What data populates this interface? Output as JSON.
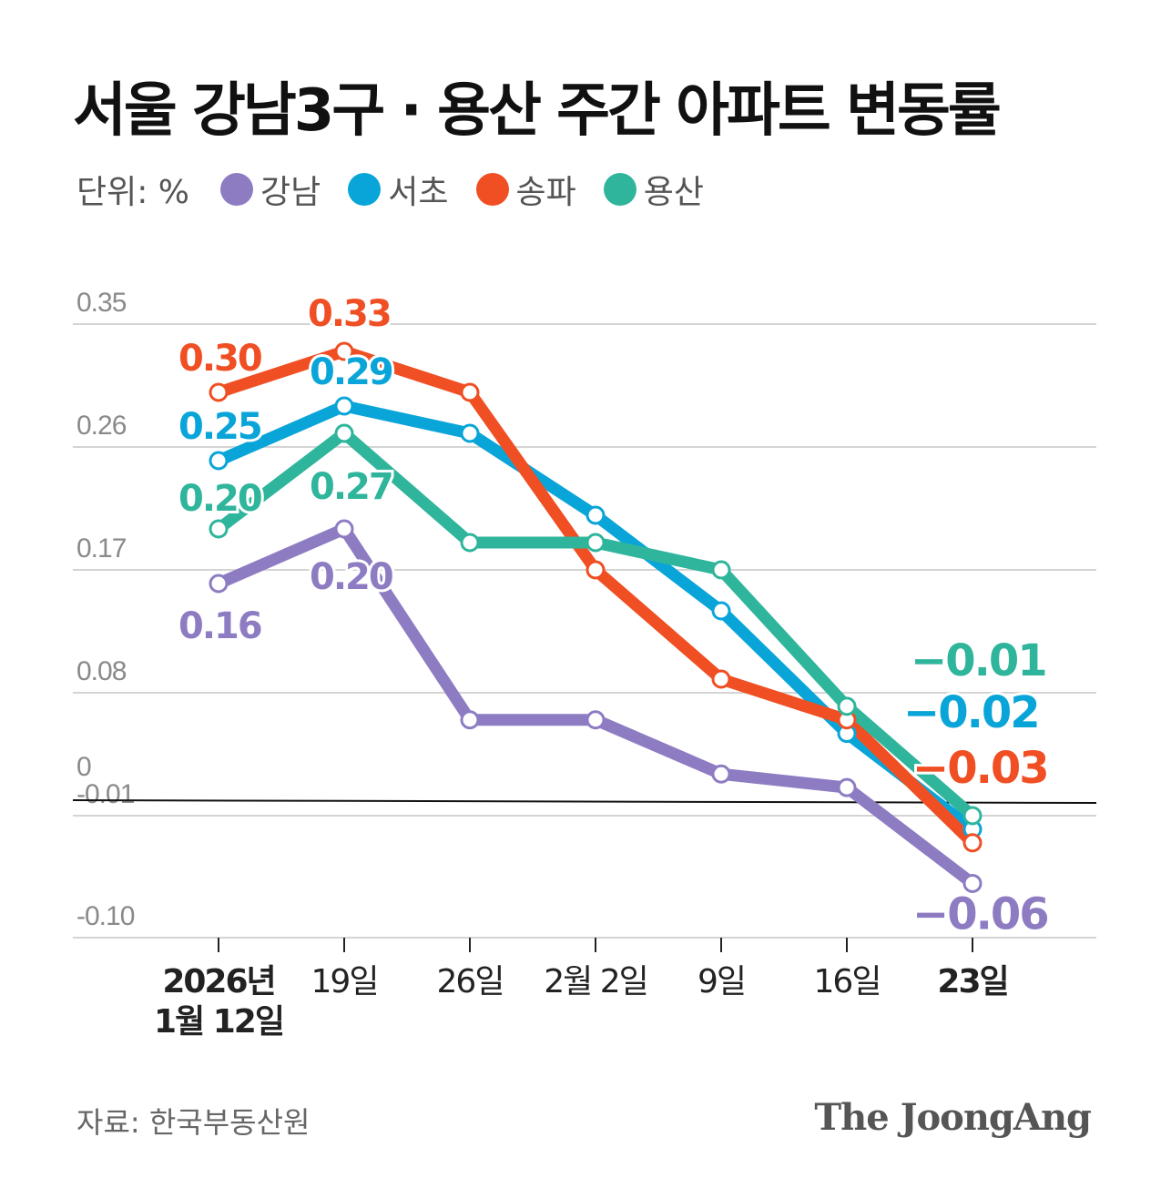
{
  "title": "서울 강남3구 · 용산 주간 아파트 변동률",
  "unit_label": "단위: %",
  "source": "자료: 한국부동산원",
  "brand": "The JoongAng",
  "chart_data": {
    "type": "line",
    "title": "서울 강남3구 · 용산 주간 아파트 변동률",
    "ylabel": "단위: %",
    "x": [
      "2026년 1월 12일",
      "19일",
      "26일",
      "2월 2일",
      "9일",
      "16일",
      "23일"
    ],
    "x_tick_lines": [
      [
        "2026년",
        "1월 12일"
      ],
      [
        "19일"
      ],
      [
        "26일"
      ],
      [
        "2월 2일"
      ],
      [
        "9일"
      ],
      [
        "16일"
      ],
      [
        "23일"
      ]
    ],
    "y_ticks": [
      "0.35",
      "0.26",
      "0.17",
      "0.08",
      "0",
      "-0.01",
      "-0.10"
    ],
    "grid": true,
    "legend_position": "top-left",
    "series": [
      {
        "name": "강남",
        "color": "#8e7cc3",
        "values": [
          0.16,
          0.2,
          0.06,
          0.06,
          0.02,
          0.01,
          -0.06
        ],
        "labels": [
          {
            "index": 0,
            "text": "0.16"
          },
          {
            "index": 1,
            "text": "0.20"
          },
          {
            "index": 6,
            "text": "−0.06"
          }
        ]
      },
      {
        "name": "서초",
        "color": "#0aa5d8",
        "values": [
          0.25,
          0.29,
          0.27,
          0.21,
          0.14,
          0.05,
          -0.02
        ],
        "labels": [
          {
            "index": 0,
            "text": "0.25"
          },
          {
            "index": 1,
            "text": "0.29"
          },
          {
            "index": 6,
            "text": "−0.02"
          }
        ]
      },
      {
        "name": "송파",
        "color": "#f04e23",
        "values": [
          0.3,
          0.33,
          0.3,
          0.17,
          0.09,
          0.06,
          -0.03
        ],
        "labels": [
          {
            "index": 0,
            "text": "0.30"
          },
          {
            "index": 1,
            "text": "0.33"
          },
          {
            "index": 6,
            "text": "−0.03"
          }
        ]
      },
      {
        "name": "용산",
        "color": "#2fb59b",
        "values": [
          0.2,
          0.27,
          0.19,
          0.19,
          0.17,
          0.07,
          -0.01
        ],
        "labels": [
          {
            "index": 0,
            "text": "0.20"
          },
          {
            "index": 1,
            "text": "0.27"
          },
          {
            "index": 6,
            "text": "−0.01"
          }
        ]
      }
    ]
  }
}
